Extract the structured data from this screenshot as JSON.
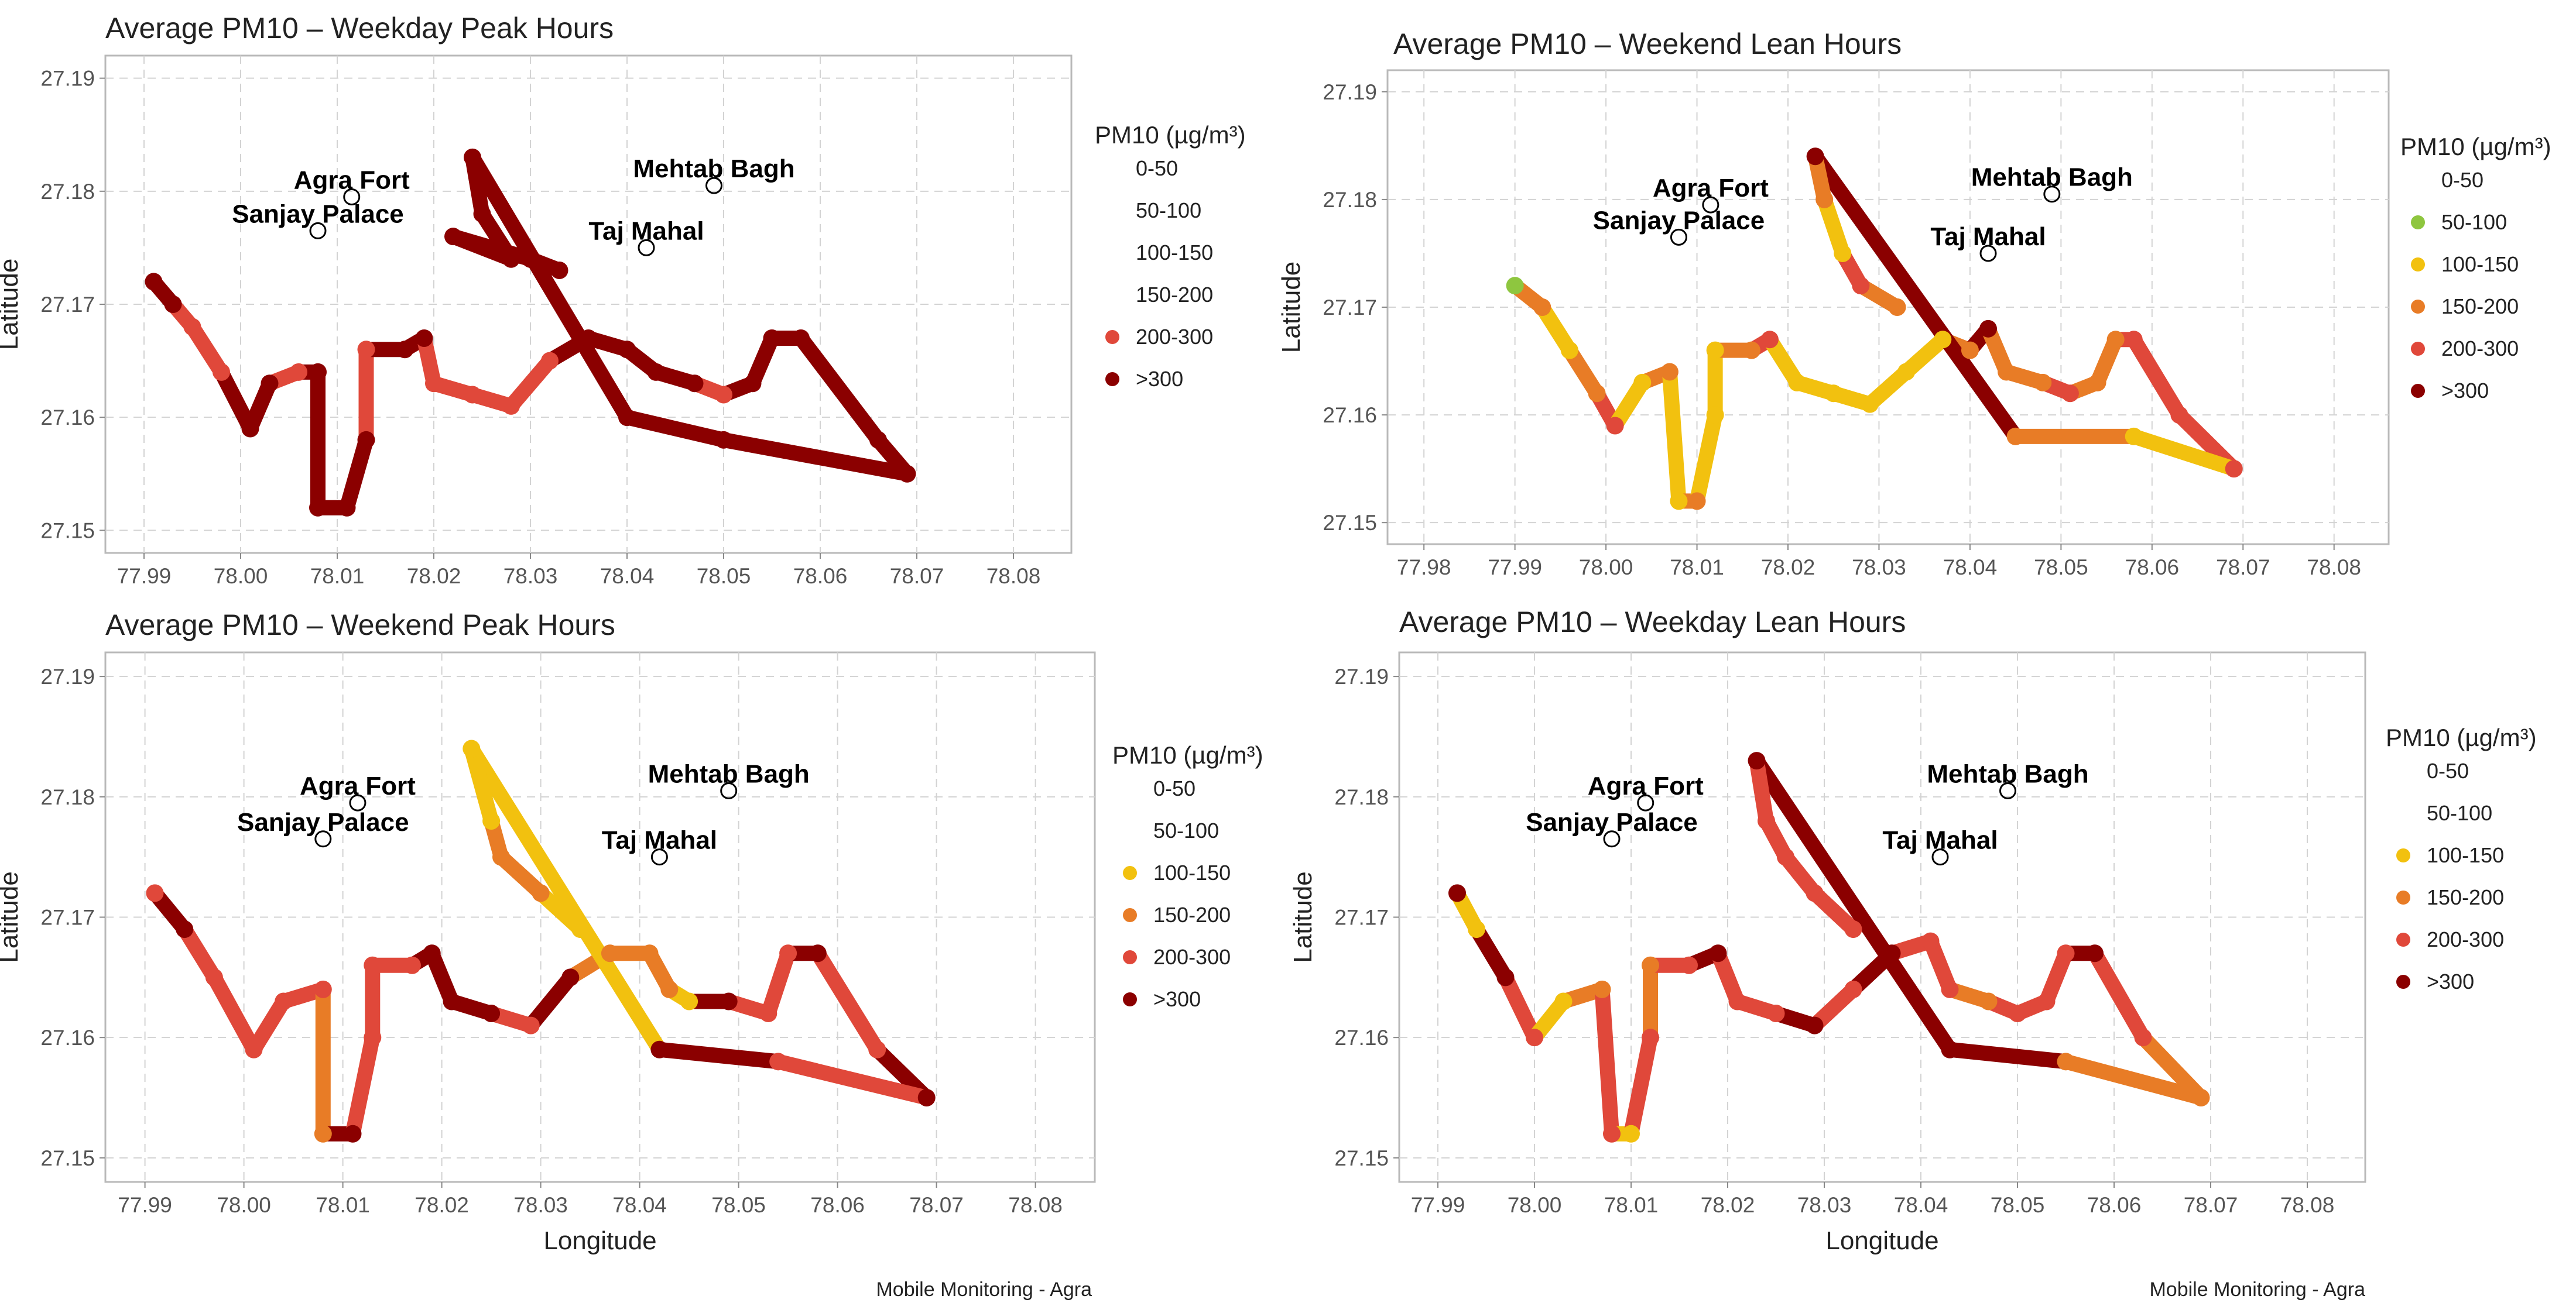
{
  "legend": {
    "title": "PM10 (µg/m³)",
    "classes": [
      {
        "label": "0-50",
        "color": "#7cbf3a"
      },
      {
        "label": "50-100",
        "color": "#8ec63f"
      },
      {
        "label": "100-150",
        "color": "#f2c10f"
      },
      {
        "label": "150-200",
        "color": "#e87c26"
      },
      {
        "label": "200-300",
        "color": "#e0483a"
      },
      {
        "label": ">300",
        "color": "#8b0000"
      }
    ]
  },
  "caption": "Mobile Monitoring - Agra",
  "landmarks": [
    {
      "name": "Agra Fort",
      "lon": 78.0115,
      "lat": 27.1795
    },
    {
      "name": "Sanjay Palace",
      "lon": 78.008,
      "lat": 27.1765
    },
    {
      "name": "Mehtab Bagh",
      "lon": 78.049,
      "lat": 27.1805
    },
    {
      "name": "Taj Mahal",
      "lon": 78.042,
      "lat": 27.175
    }
  ],
  "chart_data": [
    {
      "type": "scatter",
      "title": "Average PM10 – Weekday Peak Hours",
      "xlabel": "",
      "ylabel": "Latitude",
      "xlim": [
        77.986,
        78.086
      ],
      "ylim": [
        27.148,
        27.192
      ],
      "xticks": [
        77.99,
        78.0,
        78.01,
        78.02,
        78.03,
        78.04,
        78.05,
        78.06,
        78.07,
        78.08
      ],
      "yticks": [
        27.15,
        27.16,
        27.17,
        27.18,
        27.19
      ],
      "grid": true,
      "legend_placement": "right",
      "legend_shows_all_classes": false,
      "points": [
        {
          "lon": 77.991,
          "lat": 27.172,
          "pm10_class": ">300"
        },
        {
          "lon": 77.993,
          "lat": 27.17,
          "pm10_class": ">300"
        },
        {
          "lon": 77.995,
          "lat": 27.168,
          "pm10_class": "200-300"
        },
        {
          "lon": 77.998,
          "lat": 27.164,
          "pm10_class": "200-300"
        },
        {
          "lon": 78.001,
          "lat": 27.159,
          "pm10_class": ">300"
        },
        {
          "lon": 78.003,
          "lat": 27.163,
          "pm10_class": ">300"
        },
        {
          "lon": 78.006,
          "lat": 27.164,
          "pm10_class": "200-300"
        },
        {
          "lon": 78.008,
          "lat": 27.164,
          "pm10_class": ">300"
        },
        {
          "lon": 78.008,
          "lat": 27.152,
          "pm10_class": ">300"
        },
        {
          "lon": 78.011,
          "lat": 27.152,
          "pm10_class": ">300"
        },
        {
          "lon": 78.013,
          "lat": 27.158,
          "pm10_class": ">300"
        },
        {
          "lon": 78.013,
          "lat": 27.166,
          "pm10_class": "200-300"
        },
        {
          "lon": 78.017,
          "lat": 27.166,
          "pm10_class": ">300"
        },
        {
          "lon": 78.019,
          "lat": 27.167,
          "pm10_class": ">300"
        },
        {
          "lon": 78.02,
          "lat": 27.163,
          "pm10_class": "200-300"
        },
        {
          "lon": 78.024,
          "lat": 27.162,
          "pm10_class": "200-300"
        },
        {
          "lon": 78.028,
          "lat": 27.161,
          "pm10_class": "200-300"
        },
        {
          "lon": 78.032,
          "lat": 27.165,
          "pm10_class": "200-300"
        },
        {
          "lon": 78.036,
          "lat": 27.167,
          "pm10_class": ">300"
        },
        {
          "lon": 78.04,
          "lat": 27.166,
          "pm10_class": ">300"
        },
        {
          "lon": 78.043,
          "lat": 27.164,
          "pm10_class": ">300"
        },
        {
          "lon": 78.047,
          "lat": 27.163,
          "pm10_class": ">300"
        },
        {
          "lon": 78.05,
          "lat": 27.162,
          "pm10_class": "200-300"
        },
        {
          "lon": 78.053,
          "lat": 27.163,
          "pm10_class": ">300"
        },
        {
          "lon": 78.055,
          "lat": 27.167,
          "pm10_class": ">300"
        },
        {
          "lon": 78.058,
          "lat": 27.167,
          "pm10_class": ">300"
        },
        {
          "lon": 78.066,
          "lat": 27.158,
          "pm10_class": ">300"
        },
        {
          "lon": 78.069,
          "lat": 27.155,
          "pm10_class": ">300"
        },
        {
          "lon": 78.05,
          "lat": 27.158,
          "pm10_class": ">300"
        },
        {
          "lon": 78.04,
          "lat": 27.16,
          "pm10_class": ">300"
        },
        {
          "lon": 78.024,
          "lat": 27.183,
          "pm10_class": ">300"
        },
        {
          "lon": 78.025,
          "lat": 27.178,
          "pm10_class": ">300"
        },
        {
          "lon": 78.028,
          "lat": 27.174,
          "pm10_class": ">300"
        },
        {
          "lon": 78.022,
          "lat": 27.176,
          "pm10_class": ">300"
        },
        {
          "lon": 78.03,
          "lat": 27.174,
          "pm10_class": ">300"
        },
        {
          "lon": 78.033,
          "lat": 27.173,
          "pm10_class": ">300"
        }
      ]
    },
    {
      "type": "scatter",
      "title": "Average PM10 – Weekend Lean Hours",
      "xlabel": "",
      "ylabel": "Latitude",
      "xlim": [
        77.976,
        78.086
      ],
      "ylim": [
        27.148,
        27.192
      ],
      "xticks": [
        77.98,
        77.99,
        78.0,
        78.01,
        78.02,
        78.03,
        78.04,
        78.05,
        78.06,
        78.07,
        78.08
      ],
      "yticks": [
        27.15,
        27.16,
        27.17,
        27.18,
        27.19
      ],
      "grid": true,
      "legend_placement": "right",
      "legend_shows_all_classes": false,
      "points": [
        {
          "lon": 77.99,
          "lat": 27.172,
          "pm10_class": "50-100"
        },
        {
          "lon": 77.993,
          "lat": 27.17,
          "pm10_class": "150-200"
        },
        {
          "lon": 77.996,
          "lat": 27.166,
          "pm10_class": "100-150"
        },
        {
          "lon": 77.999,
          "lat": 27.162,
          "pm10_class": "150-200"
        },
        {
          "lon": 78.001,
          "lat": 27.159,
          "pm10_class": "200-300"
        },
        {
          "lon": 78.004,
          "lat": 27.163,
          "pm10_class": "100-150"
        },
        {
          "lon": 78.007,
          "lat": 27.164,
          "pm10_class": "150-200"
        },
        {
          "lon": 78.008,
          "lat": 27.152,
          "pm10_class": "100-150"
        },
        {
          "lon": 78.01,
          "lat": 27.152,
          "pm10_class": "150-200"
        },
        {
          "lon": 78.012,
          "lat": 27.16,
          "pm10_class": "100-150"
        },
        {
          "lon": 78.012,
          "lat": 27.166,
          "pm10_class": "100-150"
        },
        {
          "lon": 78.016,
          "lat": 27.166,
          "pm10_class": "150-200"
        },
        {
          "lon": 78.018,
          "lat": 27.167,
          "pm10_class": "200-300"
        },
        {
          "lon": 78.021,
          "lat": 27.163,
          "pm10_class": "100-150"
        },
        {
          "lon": 78.025,
          "lat": 27.162,
          "pm10_class": "100-150"
        },
        {
          "lon": 78.029,
          "lat": 27.161,
          "pm10_class": "100-150"
        },
        {
          "lon": 78.033,
          "lat": 27.164,
          "pm10_class": "100-150"
        },
        {
          "lon": 78.037,
          "lat": 27.167,
          "pm10_class": "100-150"
        },
        {
          "lon": 78.04,
          "lat": 27.166,
          "pm10_class": "150-200"
        },
        {
          "lon": 78.042,
          "lat": 27.168,
          "pm10_class": ">300"
        },
        {
          "lon": 78.044,
          "lat": 27.164,
          "pm10_class": "150-200"
        },
        {
          "lon": 78.048,
          "lat": 27.163,
          "pm10_class": "150-200"
        },
        {
          "lon": 78.051,
          "lat": 27.162,
          "pm10_class": "200-300"
        },
        {
          "lon": 78.054,
          "lat": 27.163,
          "pm10_class": "150-200"
        },
        {
          "lon": 78.056,
          "lat": 27.167,
          "pm10_class": "150-200"
        },
        {
          "lon": 78.058,
          "lat": 27.167,
          "pm10_class": "200-300"
        },
        {
          "lon": 78.063,
          "lat": 27.16,
          "pm10_class": "200-300"
        },
        {
          "lon": 78.069,
          "lat": 27.155,
          "pm10_class": "200-300"
        },
        {
          "lon": 78.058,
          "lat": 27.158,
          "pm10_class": "100-150"
        },
        {
          "lon": 78.045,
          "lat": 27.158,
          "pm10_class": "150-200"
        },
        {
          "lon": 78.023,
          "lat": 27.184,
          "pm10_class": ">300"
        },
        {
          "lon": 78.024,
          "lat": 27.18,
          "pm10_class": "150-200"
        },
        {
          "lon": 78.026,
          "lat": 27.175,
          "pm10_class": "100-150"
        },
        {
          "lon": 78.028,
          "lat": 27.172,
          "pm10_class": "200-300"
        },
        {
          "lon": 78.032,
          "lat": 27.17,
          "pm10_class": "150-200"
        }
      ]
    },
    {
      "type": "scatter",
      "title": "Average PM10 – Weekend Peak Hours",
      "xlabel": "Longitude",
      "ylabel": "Latitude",
      "xlim": [
        77.986,
        78.086
      ],
      "ylim": [
        27.148,
        27.192
      ],
      "xticks": [
        77.99,
        78.0,
        78.01,
        78.02,
        78.03,
        78.04,
        78.05,
        78.06,
        78.07,
        78.08
      ],
      "yticks": [
        27.15,
        27.16,
        27.17,
        27.18,
        27.19
      ],
      "grid": true,
      "legend_placement": "right",
      "legend_shows_all_classes": false,
      "points": [
        {
          "lon": 77.991,
          "lat": 27.172,
          "pm10_class": "200-300"
        },
        {
          "lon": 77.994,
          "lat": 27.169,
          "pm10_class": ">300"
        },
        {
          "lon": 77.997,
          "lat": 27.165,
          "pm10_class": "200-300"
        },
        {
          "lon": 78.001,
          "lat": 27.159,
          "pm10_class": "200-300"
        },
        {
          "lon": 78.004,
          "lat": 27.163,
          "pm10_class": "200-300"
        },
        {
          "lon": 78.008,
          "lat": 27.164,
          "pm10_class": "200-300"
        },
        {
          "lon": 78.008,
          "lat": 27.152,
          "pm10_class": "150-200"
        },
        {
          "lon": 78.011,
          "lat": 27.152,
          "pm10_class": ">300"
        },
        {
          "lon": 78.013,
          "lat": 27.16,
          "pm10_class": "200-300"
        },
        {
          "lon": 78.013,
          "lat": 27.166,
          "pm10_class": "200-300"
        },
        {
          "lon": 78.017,
          "lat": 27.166,
          "pm10_class": "200-300"
        },
        {
          "lon": 78.019,
          "lat": 27.167,
          "pm10_class": ">300"
        },
        {
          "lon": 78.021,
          "lat": 27.163,
          "pm10_class": ">300"
        },
        {
          "lon": 78.025,
          "lat": 27.162,
          "pm10_class": ">300"
        },
        {
          "lon": 78.029,
          "lat": 27.161,
          "pm10_class": "200-300"
        },
        {
          "lon": 78.033,
          "lat": 27.165,
          "pm10_class": ">300"
        },
        {
          "lon": 78.037,
          "lat": 27.167,
          "pm10_class": "150-200"
        },
        {
          "lon": 78.041,
          "lat": 27.167,
          "pm10_class": "150-200"
        },
        {
          "lon": 78.043,
          "lat": 27.164,
          "pm10_class": "150-200"
        },
        {
          "lon": 78.045,
          "lat": 27.163,
          "pm10_class": "100-150"
        },
        {
          "lon": 78.049,
          "lat": 27.163,
          "pm10_class": ">300"
        },
        {
          "lon": 78.053,
          "lat": 27.162,
          "pm10_class": "200-300"
        },
        {
          "lon": 78.055,
          "lat": 27.167,
          "pm10_class": "200-300"
        },
        {
          "lon": 78.058,
          "lat": 27.167,
          "pm10_class": ">300"
        },
        {
          "lon": 78.064,
          "lat": 27.159,
          "pm10_class": "200-300"
        },
        {
          "lon": 78.069,
          "lat": 27.155,
          "pm10_class": ">300"
        },
        {
          "lon": 78.054,
          "lat": 27.158,
          "pm10_class": "200-300"
        },
        {
          "lon": 78.042,
          "lat": 27.159,
          "pm10_class": ">300"
        },
        {
          "lon": 78.023,
          "lat": 27.184,
          "pm10_class": "100-150"
        },
        {
          "lon": 78.025,
          "lat": 27.178,
          "pm10_class": "100-150"
        },
        {
          "lon": 78.026,
          "lat": 27.175,
          "pm10_class": "150-200"
        },
        {
          "lon": 78.03,
          "lat": 27.172,
          "pm10_class": "150-200"
        },
        {
          "lon": 78.034,
          "lat": 27.169,
          "pm10_class": "100-150"
        }
      ]
    },
    {
      "type": "scatter",
      "title": "Average PM10 – Weekday Lean Hours",
      "xlabel": "Longitude",
      "ylabel": "Latitude",
      "xlim": [
        77.986,
        78.086
      ],
      "ylim": [
        27.148,
        27.192
      ],
      "xticks": [
        77.99,
        78.0,
        78.01,
        78.02,
        78.03,
        78.04,
        78.05,
        78.06,
        78.07,
        78.08
      ],
      "yticks": [
        27.15,
        27.16,
        27.17,
        27.18,
        27.19
      ],
      "grid": true,
      "legend_placement": "right",
      "legend_shows_all_classes": false,
      "points": [
        {
          "lon": 77.992,
          "lat": 27.172,
          "pm10_class": ">300"
        },
        {
          "lon": 77.994,
          "lat": 27.169,
          "pm10_class": "100-150"
        },
        {
          "lon": 77.997,
          "lat": 27.165,
          "pm10_class": ">300"
        },
        {
          "lon": 78.0,
          "lat": 27.16,
          "pm10_class": "200-300"
        },
        {
          "lon": 78.003,
          "lat": 27.163,
          "pm10_class": "100-150"
        },
        {
          "lon": 78.007,
          "lat": 27.164,
          "pm10_class": "150-200"
        },
        {
          "lon": 78.008,
          "lat": 27.152,
          "pm10_class": "200-300"
        },
        {
          "lon": 78.01,
          "lat": 27.152,
          "pm10_class": "100-150"
        },
        {
          "lon": 78.012,
          "lat": 27.16,
          "pm10_class": "200-300"
        },
        {
          "lon": 78.012,
          "lat": 27.166,
          "pm10_class": "150-200"
        },
        {
          "lon": 78.016,
          "lat": 27.166,
          "pm10_class": "200-300"
        },
        {
          "lon": 78.019,
          "lat": 27.167,
          "pm10_class": ">300"
        },
        {
          "lon": 78.021,
          "lat": 27.163,
          "pm10_class": "200-300"
        },
        {
          "lon": 78.025,
          "lat": 27.162,
          "pm10_class": "200-300"
        },
        {
          "lon": 78.029,
          "lat": 27.161,
          "pm10_class": ">300"
        },
        {
          "lon": 78.033,
          "lat": 27.164,
          "pm10_class": "200-300"
        },
        {
          "lon": 78.037,
          "lat": 27.167,
          "pm10_class": ">300"
        },
        {
          "lon": 78.041,
          "lat": 27.168,
          "pm10_class": "200-300"
        },
        {
          "lon": 78.043,
          "lat": 27.164,
          "pm10_class": "200-300"
        },
        {
          "lon": 78.047,
          "lat": 27.163,
          "pm10_class": "150-200"
        },
        {
          "lon": 78.05,
          "lat": 27.162,
          "pm10_class": "200-300"
        },
        {
          "lon": 78.053,
          "lat": 27.163,
          "pm10_class": "200-300"
        },
        {
          "lon": 78.055,
          "lat": 27.167,
          "pm10_class": "200-300"
        },
        {
          "lon": 78.058,
          "lat": 27.167,
          "pm10_class": ">300"
        },
        {
          "lon": 78.063,
          "lat": 27.16,
          "pm10_class": "200-300"
        },
        {
          "lon": 78.069,
          "lat": 27.155,
          "pm10_class": "150-200"
        },
        {
          "lon": 78.055,
          "lat": 27.158,
          "pm10_class": "150-200"
        },
        {
          "lon": 78.043,
          "lat": 27.159,
          "pm10_class": ">300"
        },
        {
          "lon": 78.023,
          "lat": 27.183,
          "pm10_class": ">300"
        },
        {
          "lon": 78.024,
          "lat": 27.178,
          "pm10_class": "200-300"
        },
        {
          "lon": 78.026,
          "lat": 27.175,
          "pm10_class": "200-300"
        },
        {
          "lon": 78.029,
          "lat": 27.172,
          "pm10_class": "200-300"
        },
        {
          "lon": 78.033,
          "lat": 27.169,
          "pm10_class": "200-300"
        }
      ]
    }
  ]
}
